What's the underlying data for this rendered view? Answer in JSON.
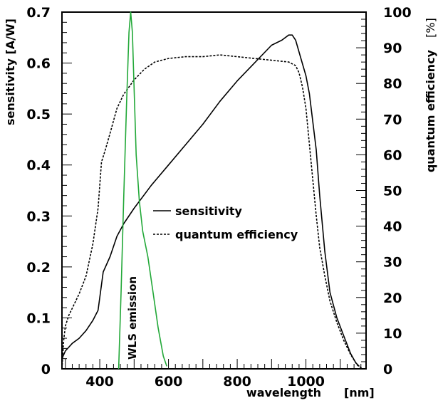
{
  "chart_data": {
    "type": "line",
    "title": "",
    "xlabel": "wavelength",
    "xlabel_unit": "[nm]",
    "ylabel": "sensitivity [A/W]",
    "y2label": "quantum efficiency",
    "y2label_unit": "[%]",
    "xlim": [
      290,
      1175
    ],
    "ylim": [
      0,
      0.7
    ],
    "y2lim": [
      0,
      100
    ],
    "xticks": [
      400,
      600,
      800,
      1000
    ],
    "yticks": [
      0,
      0.1,
      0.2,
      0.3,
      0.4,
      0.5,
      0.6,
      0.7
    ],
    "y2ticks": [
      0,
      10,
      20,
      30,
      40,
      50,
      60,
      70,
      80,
      90,
      100
    ],
    "grid": false,
    "legend_position": "center",
    "series": [
      {
        "name": "sensitivity",
        "axis": "left",
        "style": "solid",
        "color": "#000000",
        "x": [
          290,
          300,
          320,
          340,
          360,
          380,
          395,
          400,
          410,
          430,
          450,
          470,
          500,
          550,
          600,
          650,
          700,
          750,
          800,
          850,
          900,
          930,
          950,
          960,
          970,
          985,
          1000,
          1010,
          1020,
          1030,
          1040,
          1055,
          1070,
          1090,
          1110,
          1130,
          1145,
          1155
        ],
        "y": [
          0.02,
          0.035,
          0.05,
          0.06,
          0.075,
          0.095,
          0.115,
          0.14,
          0.19,
          0.22,
          0.26,
          0.285,
          0.315,
          0.36,
          0.4,
          0.44,
          0.48,
          0.525,
          0.565,
          0.6,
          0.635,
          0.645,
          0.655,
          0.655,
          0.645,
          0.61,
          0.575,
          0.54,
          0.485,
          0.43,
          0.34,
          0.23,
          0.15,
          0.1,
          0.065,
          0.03,
          0.012,
          0.005
        ]
      },
      {
        "name": "quantum efficiency",
        "axis": "right",
        "style": "dashed",
        "color": "#000000",
        "x": [
          290,
          295,
          300,
          310,
          320,
          340,
          360,
          380,
          395,
          405,
          415,
          430,
          450,
          470,
          500,
          530,
          560,
          600,
          650,
          700,
          750,
          800,
          850,
          900,
          950,
          970,
          980,
          990,
          1000,
          1010,
          1020,
          1030,
          1040,
          1055,
          1070,
          1090,
          1110,
          1130,
          1150,
          1165
        ],
        "y": [
          0,
          8,
          12,
          15,
          17,
          21,
          26,
          35,
          45,
          58,
          61,
          66,
          73,
          77,
          81,
          84,
          86,
          87,
          87.5,
          87.5,
          88,
          87.5,
          87,
          86.5,
          86,
          85,
          83,
          79,
          73,
          63,
          53,
          43,
          34,
          26,
          19,
          13,
          8,
          4,
          1,
          0
        ]
      },
      {
        "name": "WLS emission",
        "axis": "left",
        "style": "solid",
        "color": "#22a838",
        "x": [
          455,
          462,
          470,
          478,
          485,
          490,
          495,
          500,
          506,
          515,
          525,
          540,
          555,
          570,
          585,
          595
        ],
        "y": [
          0.0,
          0.15,
          0.34,
          0.52,
          0.66,
          0.7,
          0.66,
          0.55,
          0.42,
          0.33,
          0.27,
          0.22,
          0.15,
          0.08,
          0.025,
          0.005
        ]
      }
    ],
    "annotations": [
      {
        "text": "WLS emission",
        "x": 490,
        "y": 0.11,
        "rotation": -90
      }
    ]
  }
}
